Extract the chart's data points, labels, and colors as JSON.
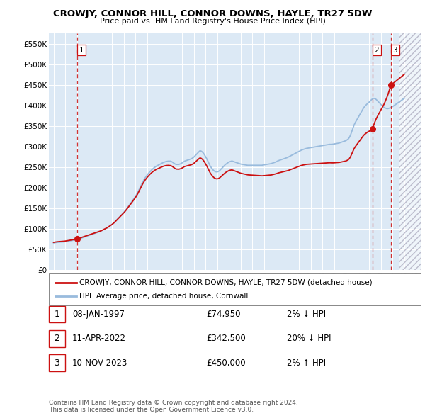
{
  "title": "CROWJY, CONNOR HILL, CONNOR DOWNS, HAYLE, TR27 5DW",
  "subtitle": "Price paid vs. HM Land Registry's House Price Index (HPI)",
  "ylim": [
    0,
    575000
  ],
  "yticks": [
    0,
    50000,
    100000,
    150000,
    200000,
    250000,
    300000,
    350000,
    400000,
    450000,
    500000,
    550000
  ],
  "ytick_labels": [
    "£0",
    "£50K",
    "£100K",
    "£150K",
    "£200K",
    "£250K",
    "£300K",
    "£350K",
    "£400K",
    "£450K",
    "£500K",
    "£550K"
  ],
  "xlim_start": 1994.6,
  "xlim_end": 2026.4,
  "xticks": [
    1995,
    1996,
    1997,
    1998,
    1999,
    2000,
    2001,
    2002,
    2003,
    2004,
    2005,
    2006,
    2007,
    2008,
    2009,
    2010,
    2011,
    2012,
    2013,
    2014,
    2015,
    2016,
    2017,
    2018,
    2019,
    2020,
    2021,
    2022,
    2023,
    2024,
    2025,
    2026
  ],
  "background_color": "#dce9f5",
  "grid_color": "#ffffff",
  "sale_color": "#cc1111",
  "hpi_color": "#99bbdd",
  "transactions": [
    {
      "year": 1997.03,
      "price": 74950,
      "label": "1"
    },
    {
      "year": 2022.28,
      "price": 342500,
      "label": "2"
    },
    {
      "year": 2023.86,
      "price": 450000,
      "label": "3"
    }
  ],
  "legend_sale_label": "CROWJY, CONNOR HILL, CONNOR DOWNS, HAYLE, TR27 5DW (detached house)",
  "legend_hpi_label": "HPI: Average price, detached house, Cornwall",
  "table_rows": [
    {
      "num": "1",
      "date": "08-JAN-1997",
      "price": "£74,950",
      "hpi": "2% ↓ HPI"
    },
    {
      "num": "2",
      "date": "11-APR-2022",
      "price": "£342,500",
      "hpi": "20% ↓ HPI"
    },
    {
      "num": "3",
      "date": "10-NOV-2023",
      "price": "£450,000",
      "hpi": "2% ↑ HPI"
    }
  ],
  "footnote": "Contains HM Land Registry data © Crown copyright and database right 2024.\nThis data is licensed under the Open Government Licence v3.0."
}
